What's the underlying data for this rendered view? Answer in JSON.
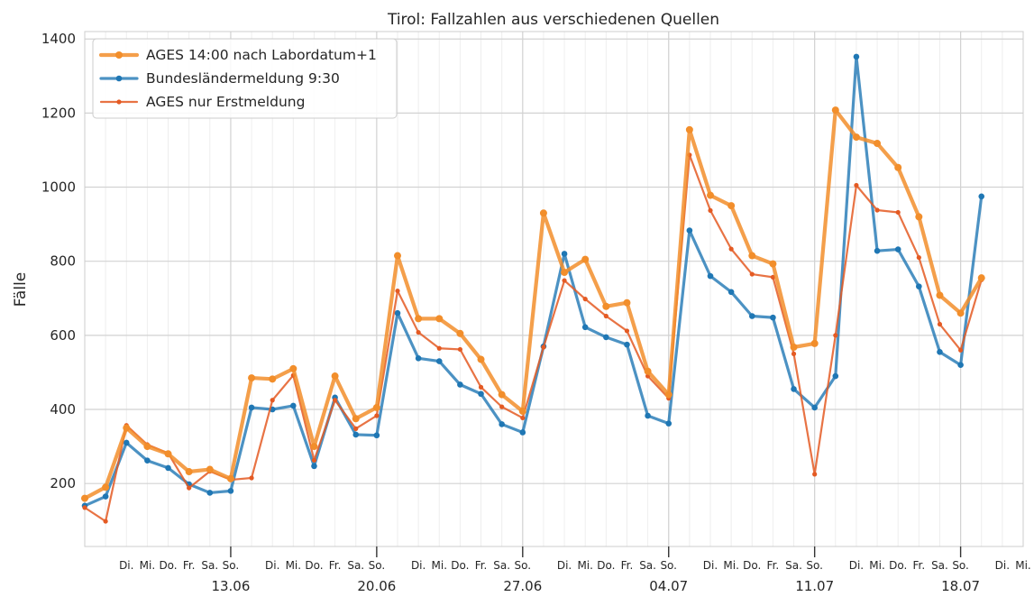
{
  "chart_data": {
    "type": "line",
    "title": "Tirol: Fallzahlen aus verschiedenen Quellen",
    "ylabel": "Fälle",
    "xlabel": "",
    "ylim": [
      30,
      1420
    ],
    "yticks": [
      200,
      400,
      600,
      800,
      1000,
      1200,
      1400
    ],
    "grid": true,
    "legend_position": "top-left",
    "x_start_date": "2021-06-06",
    "x_end_date": "2021-07-21",
    "date_ticks": [
      {
        "date": "2021-06-13",
        "label": "13.06"
      },
      {
        "date": "2021-06-20",
        "label": "20.06"
      },
      {
        "date": "2021-06-27",
        "label": "27.06"
      },
      {
        "date": "2021-07-04",
        "label": "04.07"
      },
      {
        "date": "2021-07-11",
        "label": "11.07"
      },
      {
        "date": "2021-07-18",
        "label": "18.07"
      }
    ],
    "weekday_labels": [
      {
        "date": "2021-06-08",
        "label": "Di."
      },
      {
        "date": "2021-06-09",
        "label": "Mi."
      },
      {
        "date": "2021-06-10",
        "label": "Do."
      },
      {
        "date": "2021-06-11",
        "label": "Fr."
      },
      {
        "date": "2021-06-12",
        "label": "Sa."
      },
      {
        "date": "2021-06-13",
        "label": "So."
      },
      {
        "date": "2021-06-15",
        "label": "Di."
      },
      {
        "date": "2021-06-16",
        "label": "Mi."
      },
      {
        "date": "2021-06-17",
        "label": "Do."
      },
      {
        "date": "2021-06-18",
        "label": "Fr."
      },
      {
        "date": "2021-06-19",
        "label": "Sa."
      },
      {
        "date": "2021-06-20",
        "label": "So."
      },
      {
        "date": "2021-06-22",
        "label": "Di."
      },
      {
        "date": "2021-06-23",
        "label": "Mi."
      },
      {
        "date": "2021-06-24",
        "label": "Do."
      },
      {
        "date": "2021-06-25",
        "label": "Fr."
      },
      {
        "date": "2021-06-26",
        "label": "Sa."
      },
      {
        "date": "2021-06-27",
        "label": "So."
      },
      {
        "date": "2021-06-29",
        "label": "Di."
      },
      {
        "date": "2021-06-30",
        "label": "Mi."
      },
      {
        "date": "2021-07-01",
        "label": "Do."
      },
      {
        "date": "2021-07-02",
        "label": "Fr."
      },
      {
        "date": "2021-07-03",
        "label": "Sa."
      },
      {
        "date": "2021-07-04",
        "label": "So."
      },
      {
        "date": "2021-07-06",
        "label": "Di."
      },
      {
        "date": "2021-07-07",
        "label": "Mi."
      },
      {
        "date": "2021-07-08",
        "label": "Do."
      },
      {
        "date": "2021-07-09",
        "label": "Fr."
      },
      {
        "date": "2021-07-10",
        "label": "Sa."
      },
      {
        "date": "2021-07-11",
        "label": "So."
      },
      {
        "date": "2021-07-13",
        "label": "Di."
      },
      {
        "date": "2021-07-14",
        "label": "Mi."
      },
      {
        "date": "2021-07-15",
        "label": "Do."
      },
      {
        "date": "2021-07-16",
        "label": "Fr."
      },
      {
        "date": "2021-07-17",
        "label": "Sa."
      },
      {
        "date": "2021-07-18",
        "label": "So."
      },
      {
        "date": "2021-07-20",
        "label": "Di."
      },
      {
        "date": "2021-07-21",
        "label": "Mi."
      }
    ],
    "series": [
      {
        "name": "AGES 14:00 nach Labordatum+1",
        "color": "#f28e2b",
        "start_date": "2021-06-06",
        "values": [
          160,
          190,
          350,
          300,
          280,
          232,
          238,
          213,
          485,
          482,
          510,
          300,
          490,
          375,
          405,
          815,
          645,
          645,
          605,
          535,
          440,
          395,
          930,
          770,
          805,
          678,
          688,
          503,
          440,
          1155,
          978,
          950,
          815,
          793,
          568,
          578,
          1208,
          1135,
          1118,
          1053,
          920,
          708,
          660,
          755
        ]
      },
      {
        "name": "Bundesländermeldung 9:30",
        "color": "#1f77b4",
        "start_date": "2021-06-06",
        "values": [
          140,
          165,
          310,
          262,
          242,
          198,
          175,
          180,
          405,
          400,
          410,
          247,
          432,
          332,
          330,
          660,
          538,
          530,
          467,
          442,
          360,
          338,
          570,
          820,
          622,
          595,
          575,
          383,
          362,
          883,
          760,
          717,
          652,
          648,
          455,
          405,
          490,
          1352,
          828,
          832,
          732,
          555,
          520,
          975
        ]
      },
      {
        "name": "AGES nur Erstmeldung",
        "color": "#e45a23",
        "start_date": "2021-06-06",
        "values": [
          135,
          98,
          357,
          305,
          282,
          188,
          233,
          210,
          215,
          425,
          492,
          263,
          425,
          348,
          383,
          720,
          608,
          565,
          562,
          460,
          407,
          377,
          568,
          748,
          698,
          652,
          612,
          490,
          430,
          1087,
          937,
          833,
          765,
          757,
          550,
          225,
          600,
          1005,
          938,
          932,
          810,
          630,
          560,
          750
        ]
      }
    ]
  }
}
